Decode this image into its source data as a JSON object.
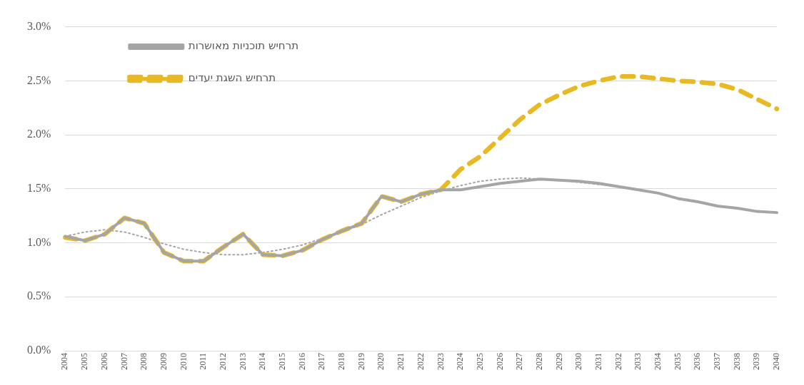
{
  "chart_data": {
    "type": "line",
    "categories": [
      "2004",
      "2005",
      "2006",
      "2007",
      "2008",
      "2009",
      "2010",
      "2011",
      "2012",
      "2013",
      "2014",
      "2015",
      "2016",
      "2017",
      "2018",
      "2019",
      "2020",
      "2021",
      "2022",
      "2023",
      "2024",
      "2025",
      "2026",
      "2027",
      "2028",
      "2029",
      "2030",
      "2031",
      "2032",
      "2033",
      "2034",
      "2035",
      "2036",
      "2037",
      "2038",
      "2039",
      "2040"
    ],
    "series": [
      {
        "name": "תרחיש תוכניות מאושרות",
        "color": "#a5a5a5",
        "line_style": "solid",
        "values": [
          1.06,
          1.02,
          1.08,
          1.23,
          1.18,
          0.91,
          0.83,
          0.83,
          0.96,
          1.08,
          0.89,
          0.88,
          0.93,
          1.03,
          1.11,
          1.18,
          1.43,
          1.38,
          1.45,
          1.49,
          1.49,
          1.52,
          1.55,
          1.57,
          1.59,
          1.58,
          1.57,
          1.55,
          1.52,
          1.49,
          1.46,
          1.41,
          1.38,
          1.34,
          1.32,
          1.29,
          1.28
        ]
      },
      {
        "name": "תרחיש השגת יעדים",
        "color": "#e8b923",
        "line_style": "dashed",
        "values": [
          1.05,
          1.02,
          1.08,
          1.23,
          1.18,
          0.91,
          0.83,
          0.83,
          0.96,
          1.08,
          0.89,
          0.88,
          0.93,
          1.03,
          1.11,
          1.18,
          1.43,
          1.38,
          1.45,
          1.49,
          1.68,
          1.8,
          1.97,
          2.14,
          2.28,
          2.37,
          2.45,
          2.5,
          2.54,
          2.54,
          2.52,
          2.5,
          2.49,
          2.47,
          2.42,
          2.33,
          2.24
        ]
      },
      {
        "color": "#a5a5a5",
        "line_style": "dotted",
        "values": [
          1.06,
          1.1,
          1.12,
          1.1,
          1.05,
          0.99,
          0.94,
          0.91,
          0.89,
          0.89,
          0.91,
          0.94,
          0.98,
          1.04,
          1.1,
          1.17,
          1.26,
          1.34,
          1.42,
          1.48,
          1.53,
          1.57,
          1.59,
          1.6,
          1.59,
          1.58,
          1.56,
          1.54,
          1.52,
          1.49,
          1.46,
          1.41,
          null,
          null,
          null,
          null,
          null
        ]
      }
    ],
    "ylim": [
      0,
      3
    ],
    "yticks": [
      {
        "value": 0,
        "label": "0.0%"
      },
      {
        "value": 0.5,
        "label": "0.5%"
      },
      {
        "value": 1,
        "label": "1.0%"
      },
      {
        "value": 1.5,
        "label": "1.5%"
      },
      {
        "value": 2,
        "label": "2.0%"
      },
      {
        "value": 2.5,
        "label": "2.5%"
      },
      {
        "value": 3,
        "label": "3.0%"
      }
    ],
    "grid": "y",
    "legend": "top left",
    "marker": "none"
  }
}
